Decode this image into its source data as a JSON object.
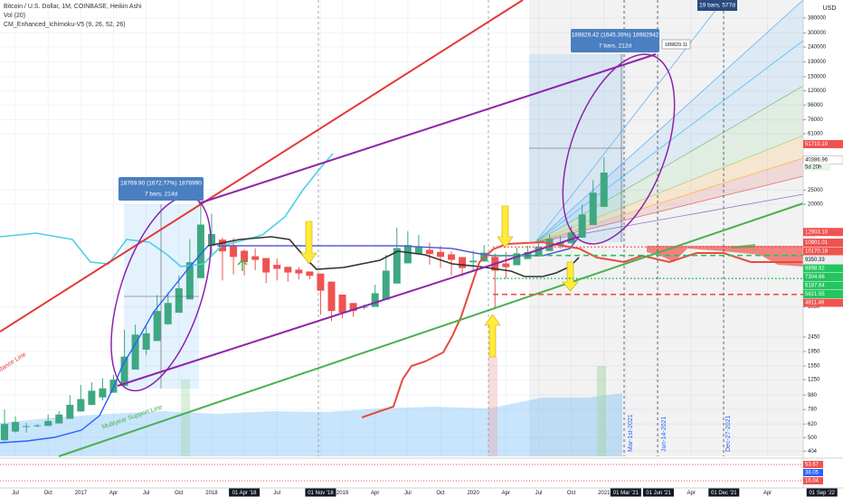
{
  "header": {
    "title": "Bitcoin / U.S. Dollar, 1M, COINBASE, Heikin Ashi",
    "volume": "Vol (20)",
    "indicator": "CM_Enhanced_Ichimoku-V5 (9, 26, 52, 26)"
  },
  "chart_data": {
    "type": "candlestick",
    "log": true,
    "grid": true,
    "currency": "USD",
    "up_color": "#3ea882",
    "down_color": "#ef5350",
    "categories": [
      null,
      "Jul",
      null,
      null,
      "Oct",
      null,
      null,
      "2017",
      null,
      null,
      "Apr",
      null,
      null,
      "Jul",
      null,
      null,
      "Oct",
      null,
      null,
      "2018",
      null,
      null,
      "01 Apr '18",
      null,
      null,
      "Jul",
      null,
      null,
      null,
      "01 Nov '18",
      null,
      "2019",
      null,
      null,
      "Apr",
      null,
      null,
      "Jul",
      null,
      null,
      "Oct",
      null,
      null,
      "2020",
      null,
      null,
      "Apr",
      null,
      null,
      "Jul",
      null,
      null,
      "Oct",
      null,
      null,
      "2021",
      null,
      "01 Mar '21",
      null,
      null,
      "01 Jun '21",
      null,
      null,
      "Apr",
      null,
      null,
      "01 Dec '21",
      null,
      null,
      null,
      "Apr",
      null,
      null,
      null,
      null,
      "01 Sep '22",
      null
    ],
    "open": [
      480,
      550,
      595,
      598,
      602,
      626,
      673,
      756,
      838,
      944,
      1017,
      1133,
      1466,
      2008,
      2304,
      3002,
      3601,
      4450,
      6225,
      10362,
      11431,
      10465,
      9583,
      8791,
      8545,
      7672,
      7436,
      7118,
      6909,
      6680,
      5890,
      4795,
      4198,
      3949,
      3950,
      4425,
      5712,
      7856,
      9178,
      9739,
      9420,
      9060,
      8680,
      7990,
      8095,
      8698,
      7849,
      7625,
      8412,
      8906,
      9553,
      10577,
      10789,
      11794,
      14397,
      19199,
      null,
      null,
      null,
      null,
      null,
      null,
      null,
      null,
      null,
      null,
      null,
      null,
      null,
      null,
      null,
      null,
      null,
      null,
      null,
      null,
      null
    ],
    "high": [
      780,
      700,
      630,
      620,
      720,
      760,
      980,
      1150,
      1200,
      1280,
      1350,
      2750,
      2980,
      2920,
      4750,
      4970,
      6470,
      11500,
      19800,
      17200,
      11800,
      11700,
      9800,
      9950,
      8545,
      8500,
      7436,
      7400,
      6909,
      6680,
      5890,
      4795,
      4198,
      4100,
      5600,
      9000,
      13800,
      13100,
      12300,
      10900,
      10400,
      9500,
      8680,
      9600,
      10500,
      9200,
      9400,
      10100,
      10400,
      11450,
      12470,
      12100,
      14100,
      19900,
      29300,
      41900,
      null,
      null,
      null,
      null,
      null,
      null,
      null,
      null,
      null,
      null,
      null,
      null,
      null,
      null,
      null,
      null,
      null,
      null,
      null,
      null,
      null
    ],
    "low": [
      470,
      540,
      540,
      590,
      600,
      626,
      673,
      756,
      838,
      900,
      1017,
      1133,
      1466,
      1840,
      2304,
      2980,
      3601,
      4450,
      6225,
      9000,
      6000,
      6600,
      6500,
      7050,
      5750,
      6000,
      5880,
      6100,
      6100,
      3500,
      3150,
      3300,
      3380,
      3800,
      3950,
      4425,
      5712,
      7856,
      9178,
      7700,
      7300,
      6500,
      6400,
      6900,
      8095,
      3800,
      6150,
      7625,
      8412,
      8906,
      9553,
      10000,
      10789,
      11794,
      14397,
      19199,
      null,
      null,
      null,
      null,
      null,
      null,
      null,
      null,
      null,
      null,
      null,
      null,
      null,
      null,
      null,
      null,
      null,
      null,
      null,
      null,
      null
    ],
    "close": [
      620,
      640,
      600,
      606,
      650,
      720,
      840,
      920,
      1050,
      1090,
      1250,
      1800,
      2550,
      2600,
      3700,
      4200,
      5300,
      8000,
      14500,
      12500,
      9500,
      8700,
      8000,
      8300,
      6800,
      7200,
      6800,
      6700,
      6450,
      5100,
      3700,
      3600,
      3700,
      3950,
      4900,
      7000,
      10000,
      10500,
      10300,
      9100,
      8700,
      8300,
      7300,
      8200,
      9300,
      7000,
      7400,
      9200,
      9400,
      10200,
      11600,
      11000,
      12800,
      17000,
      24000,
      33000,
      null,
      null,
      null,
      null,
      null,
      null,
      null,
      null,
      null,
      null,
      null,
      null,
      null,
      null,
      null,
      null,
      null,
      null,
      null,
      null,
      null
    ],
    "ylim": [
      372,
      470000
    ],
    "yticks": [
      380000,
      300000,
      240000,
      190000,
      150000,
      120000,
      96000,
      76000,
      61000,
      25000,
      20000,
      3950,
      2450,
      1950,
      1550,
      1250,
      980,
      780,
      620,
      500,
      404
    ],
    "price_tags": [
      {
        "value": 51710.1,
        "label": "51710.10",
        "color": "#ef5350"
      },
      {
        "value": 40386.96,
        "label": "40386.96",
        "color": "#ffffff"
      },
      {
        "value": 12903.1,
        "label": "12903.10",
        "color": "#ef5350"
      },
      {
        "value": 10901.01,
        "label": "10901.01",
        "color": "#ef5350"
      },
      {
        "value": 10170.18,
        "label": "10170.18",
        "color": "#ef5350",
        "line": "dotted"
      },
      {
        "value": 9350.33,
        "label": "9350.33",
        "color": "#eeeeee"
      },
      {
        "value": 8898.92,
        "label": "8898.92",
        "color": "#22c55e",
        "line": "dashed"
      },
      {
        "value": 7304.66,
        "label": "7304.66",
        "color": "#22c55e"
      },
      {
        "value": 6187.64,
        "label": "6187.64",
        "color": "#22c55e",
        "line": "dotted"
      },
      {
        "value": 5821.55,
        "label": "5821.55",
        "color": "#22c55e"
      },
      {
        "value": 4811.49,
        "label": "4811.49",
        "color": "#ef5350",
        "line": "dashed"
      }
    ],
    "countdown": "5d 20h",
    "lower_pane": {
      "values": [
        53.67,
        38.05,
        16.04
      ],
      "colors": [
        "#ef5350",
        "#2962ff",
        "#ef5350"
      ]
    },
    "annotations": {
      "measure_1": "18769.90 (1672.77%) 1876990",
      "measure_1_bars": "7 bars, 214d",
      "measure_2": "189829.42 (1645.39%) 18982942",
      "measure_2_bars": "7 bars, 212d",
      "measure_2_target": "188829.11",
      "range_bars": "19 bars, 577d",
      "support_line": "Multiyear Support Line",
      "resistance_line": "Resistance Line",
      "date_1": "Mar-1st-2021",
      "date_2": "Jun-14-2021",
      "date_3": "Dec-27-2021"
    }
  }
}
